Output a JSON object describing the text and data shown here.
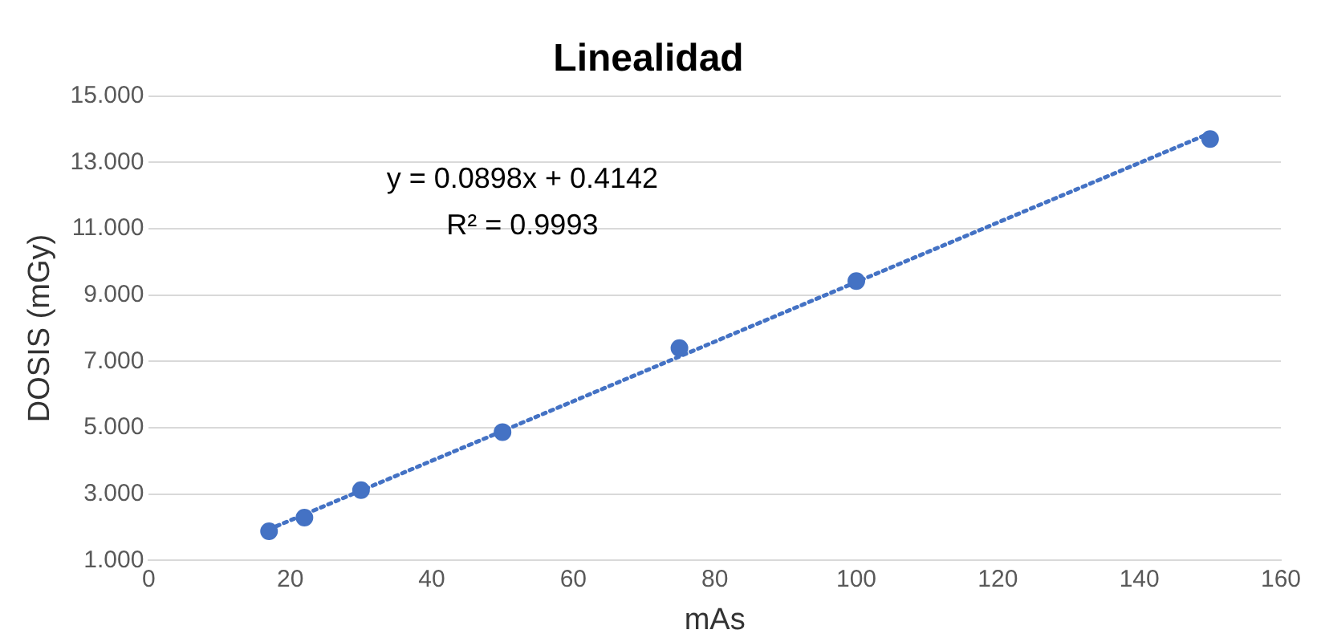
{
  "chart_data": {
    "type": "scatter",
    "title": "Linealidad",
    "xlabel": "mAs",
    "ylabel": "DOSIS (mGy)",
    "xlim": [
      0,
      160
    ],
    "xticks": [
      0,
      20,
      40,
      60,
      80,
      100,
      120,
      140,
      160
    ],
    "ylim": [
      1,
      15
    ],
    "yticks": [
      {
        "value": 1,
        "label": "1.000"
      },
      {
        "value": 3,
        "label": "3.000"
      },
      {
        "value": 5,
        "label": "5.000"
      },
      {
        "value": 7,
        "label": "7.000"
      },
      {
        "value": 9,
        "label": "9.000"
      },
      {
        "value": 11,
        "label": "11.000"
      },
      {
        "value": 13,
        "label": "13.000"
      },
      {
        "value": 15,
        "label": "15.000"
      }
    ],
    "grid": "y",
    "legend": false,
    "series": [
      {
        "color": "#4472c4",
        "marker": "circle",
        "x": [
          17,
          22,
          30,
          50,
          75,
          100,
          150
        ],
        "values": [
          1.88,
          2.29,
          3.12,
          4.87,
          7.4,
          9.42,
          13.7
        ]
      },
      {
        "type": "line",
        "color": "#4472c4",
        "marker": "none",
        "line_style": "dotted",
        "x": [
          17,
          150
        ],
        "values": [
          1.94,
          13.88
        ]
      }
    ],
    "annotations": [
      "y = 0.0898x + 0.4142",
      "R² = 0.9993"
    ]
  }
}
